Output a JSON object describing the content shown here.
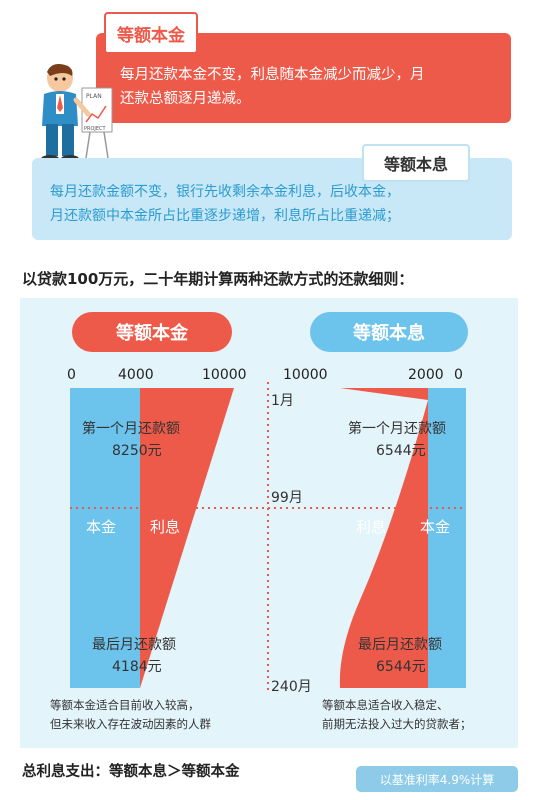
{
  "top": {
    "tag1": "等额本金",
    "desc1_line1": "每月还款本金不变，利息随本金减少而减少，月",
    "desc1_line2": "还款总额逐月递减。",
    "tag2": "等额本息",
    "desc2_line1": "每月还款金额不变，银行先收剩余本金利息，后收本金，",
    "desc2_line2": "月还款额中本金所占比重逐步递增，利息所占比重递减；",
    "figure_board_top": "PLAN",
    "figure_board_bottom": "PROJECT"
  },
  "heading": "以贷款100万元，二十年期计算两种还款方式的还款细则：",
  "left_chart": {
    "title": "等额本金",
    "ticks": [
      "0",
      "4000",
      "10000"
    ],
    "first_label": "第一个月还款额",
    "first_value": "8250元",
    "principal_label": "本金",
    "interest_label": "利息",
    "last_label": "最后月还款额",
    "last_value": "4184元",
    "note_line1": "等额本金适合目前收入较高，",
    "note_line2": "但未来收入存在波动因素的人群"
  },
  "right_chart": {
    "title": "等额本息",
    "ticks": [
      "10000",
      "2000",
      "0"
    ],
    "first_label": "第一个月还款额",
    "first_value": "6544元",
    "interest_label": "利息",
    "principal_label": "本金",
    "last_label": "最后月还款额",
    "last_value": "6544元",
    "note_line1": "等额本息适合收入稳定、",
    "note_line2": "前期无法投入过大的贷款者；"
  },
  "months": {
    "first": "1月",
    "middle": "99月",
    "last": "240月"
  },
  "footer": "总利息支出：等额本息＞等额本金",
  "rate": "以基准利率4.9%计算",
  "colors": {
    "red": "#ee5a4a",
    "blue": "#6cc3ec",
    "light_blue": "#e4f4fb"
  }
}
